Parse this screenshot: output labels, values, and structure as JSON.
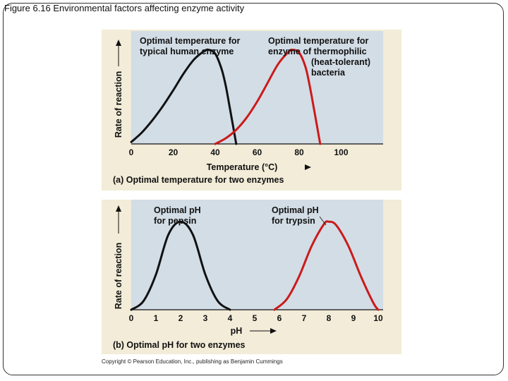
{
  "slide": {
    "title": "Figure 6.16  Environmental factors affecting enzyme activity",
    "copyright": "Copyright © Pearson Education, Inc., publishing as Benjamin Cummings"
  },
  "colors": {
    "panel_bg": "#f2ecd8",
    "plot_bg": "#d2dde6",
    "human": "#111111",
    "thermo": "#cc1a1a"
  },
  "chart_data": [
    {
      "type": "line",
      "panel_caption": "(a) Optimal temperature for two enzymes",
      "xlabel": "Temperature (°C)",
      "ylabel": "Rate of reaction",
      "xlim": [
        0,
        120
      ],
      "ylim": [
        0,
        1.2
      ],
      "xticks": [
        "0",
        "20",
        "40",
        "60",
        "80",
        "100"
      ],
      "xtick_values": [
        0,
        20,
        40,
        60,
        80,
        100
      ],
      "series": [
        {
          "name": "Optimal temperature for typical human enzyme",
          "label_lines": [
            "Optimal temperature for",
            "typical human enzyme"
          ],
          "color": "#111111",
          "x": [
            0,
            5,
            10,
            15,
            20,
            25,
            30,
            35,
            37,
            40,
            43,
            45,
            47,
            50
          ],
          "y": [
            0.02,
            0.12,
            0.25,
            0.4,
            0.57,
            0.75,
            0.9,
            0.99,
            1.0,
            0.96,
            0.8,
            0.62,
            0.38,
            0.0
          ]
        },
        {
          "name": "Optimal temperature for enzyme of thermophilic (heat-tolerant) bacteria",
          "label_lines": [
            "Optimal temperature for",
            "enzyme of thermophilic",
            "(heat-tolerant)",
            "bacteria"
          ],
          "color": "#cc1a1a",
          "x": [
            40,
            45,
            50,
            55,
            60,
            65,
            70,
            75,
            77,
            80,
            83,
            85,
            87,
            90
          ],
          "y": [
            0.0,
            0.06,
            0.15,
            0.28,
            0.45,
            0.65,
            0.85,
            0.98,
            1.0,
            0.97,
            0.82,
            0.62,
            0.38,
            0.0
          ]
        }
      ]
    },
    {
      "type": "line",
      "panel_caption": "(b) Optimal pH for two enzymes",
      "xlabel": "pH",
      "ylabel": "Rate of reaction",
      "xlim": [
        0,
        10.2
      ],
      "ylim": [
        0,
        1.25
      ],
      "xticks": [
        "0",
        "1",
        "2",
        "3",
        "4",
        "5",
        "6",
        "7",
        "8",
        "9",
        "10"
      ],
      "xtick_values": [
        0,
        1,
        2,
        3,
        4,
        5,
        6,
        7,
        8,
        9,
        10
      ],
      "series": [
        {
          "name": "Optimal pH for pepsin",
          "label_lines": [
            "Optimal pH",
            "for pepsin"
          ],
          "color": "#111111",
          "x": [
            0,
            0.5,
            1.0,
            1.5,
            2.0,
            2.5,
            3.0,
            3.5,
            4.0
          ],
          "y": [
            0.0,
            0.1,
            0.4,
            0.85,
            1.0,
            0.85,
            0.4,
            0.1,
            0.0
          ]
        },
        {
          "name": "Optimal pH for trypsin",
          "label_lines": [
            "Optimal pH",
            "for trypsin"
          ],
          "color": "#cc1a1a",
          "x": [
            5.8,
            6.3,
            6.8,
            7.3,
            7.8,
            8.0,
            8.3,
            8.8,
            9.3,
            9.8,
            10.0
          ],
          "y": [
            0.0,
            0.12,
            0.38,
            0.72,
            0.97,
            1.0,
            0.96,
            0.72,
            0.38,
            0.08,
            0.0
          ]
        }
      ]
    }
  ]
}
